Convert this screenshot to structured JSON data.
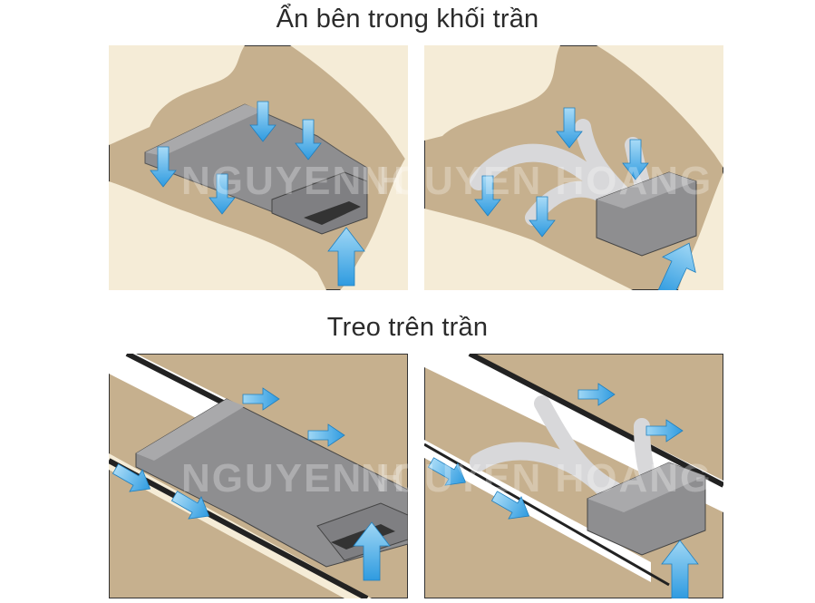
{
  "sections": [
    {
      "title": "Ẩn bên trong khối trần"
    },
    {
      "title": "Treo trên trần"
    }
  ],
  "watermark": "NGUYEN HOANG REE",
  "colors": {
    "ceiling": "#f5ecd7",
    "cavity": "#c6b08e",
    "duct": "#8e8e90",
    "duct_top": "#a9a9ab",
    "flex_duct": "#d8d8da",
    "arrow": "#3fa9e6",
    "frame": "#333333"
  },
  "icons": [
    "arrow-down-icon",
    "arrow-up-icon",
    "arrow-side-icon"
  ]
}
